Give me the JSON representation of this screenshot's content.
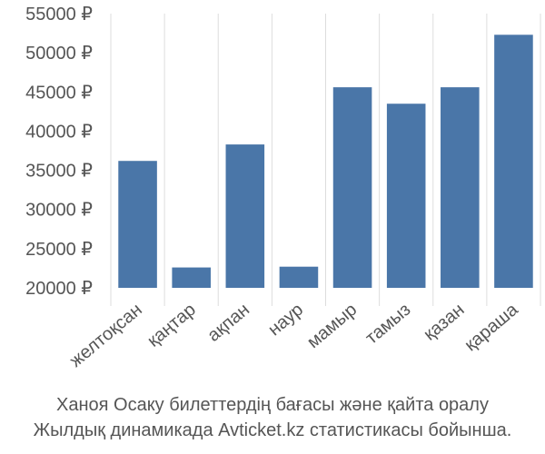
{
  "chart_data": {
    "type": "bar",
    "categories": [
      "желтоқсан",
      "қаңтар",
      "ақпан",
      "наур",
      "мамыр",
      "тамыз",
      "қазан",
      "қараша"
    ],
    "values": [
      36200,
      22600,
      38300,
      22700,
      45600,
      43500,
      45600,
      52300
    ],
    "yticks": [
      20000,
      25000,
      30000,
      35000,
      40000,
      45000,
      50000,
      55000
    ],
    "ytick_labels": [
      "20000 ₽",
      "25000 ₽",
      "30000 ₽",
      "35000 ₽",
      "40000 ₽",
      "45000 ₽",
      "50000 ₽",
      "55000 ₽"
    ],
    "ylim": [
      20000,
      55000
    ],
    "grid": "vertical",
    "colors": {
      "bar": "#4a76a8",
      "grid": "#dddddd",
      "text": "#555555"
    },
    "caption_lines": [
      "Ханоя Осаку билеттердің бағасы және қайта оралу",
      "Жылдық динамикада Avticket.kz статистикасы бойынша."
    ]
  }
}
